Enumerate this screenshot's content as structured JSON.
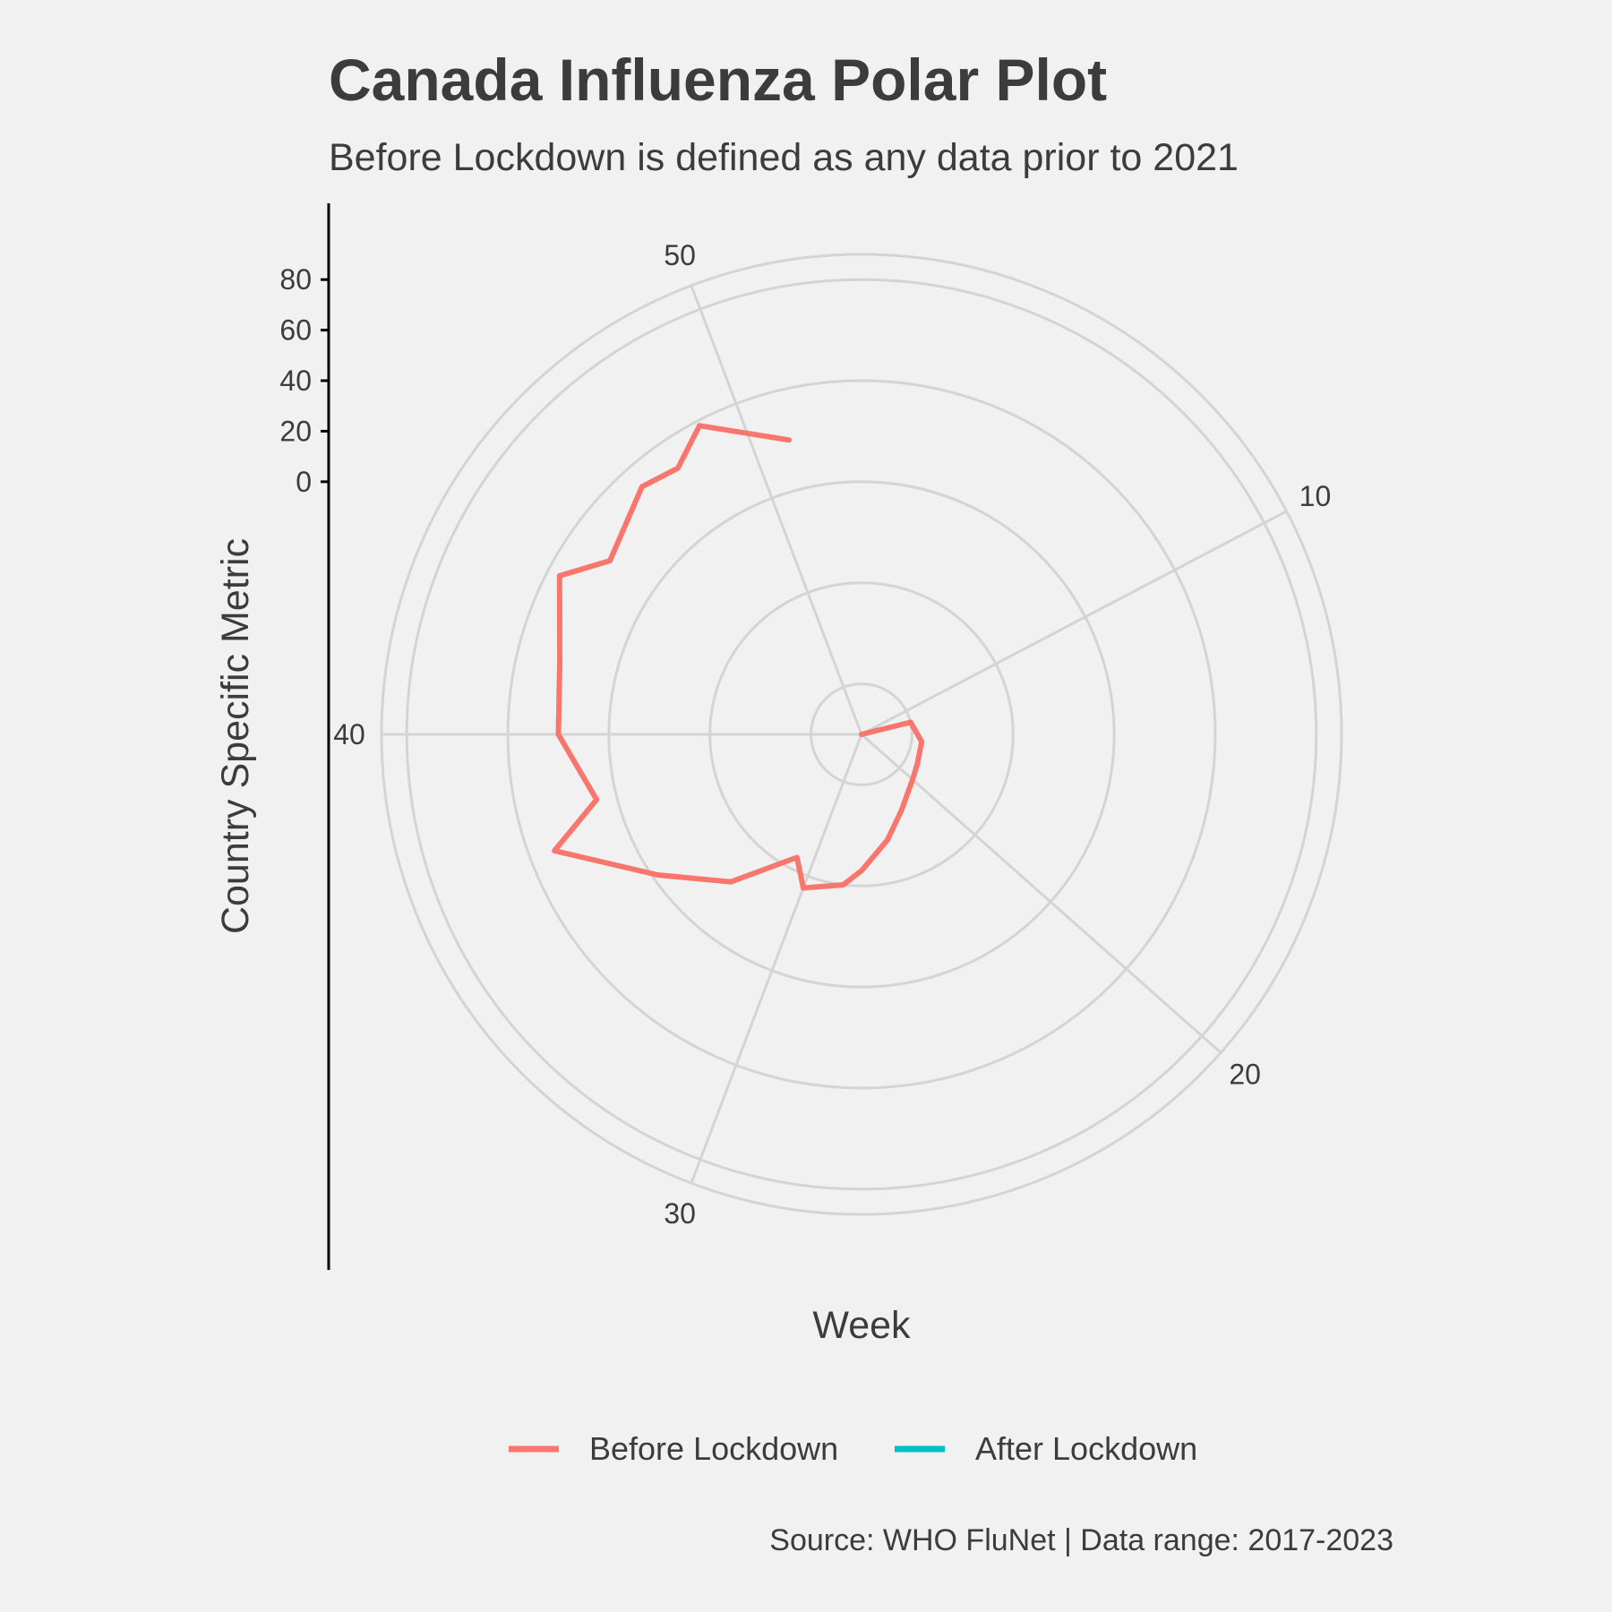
{
  "chart_data": {
    "type": "line",
    "coord": "polar",
    "title": "Canada Influenza Polar Plot",
    "subtitle": "Before Lockdown is defined as any data prior to 2021",
    "xlabel": "Week",
    "ylabel": "Country Specific Metric",
    "caption": "Source: WHO FluNet | Data range: 2017-2023",
    "theta_range": [
      1,
      53
    ],
    "r_range": [
      -100,
      90
    ],
    "theta_ticks": [
      "10",
      "20",
      "30",
      "40",
      "50"
    ],
    "r_ticks": [
      "0",
      "20",
      "40",
      "60",
      "80"
    ],
    "grid": true,
    "legend_position": "bottom",
    "colors": {
      "Before Lockdown": "#f8766d",
      "After Lockdown": "#00bfc4"
    },
    "series": [
      {
        "name": "Before Lockdown",
        "color": "#f8766d",
        "points": [
          {
            "x": 1,
            "y": -100
          },
          {
            "x": 12,
            "y": -80
          },
          {
            "x": 15,
            "y": -76
          },
          {
            "x": 18,
            "y": -75
          },
          {
            "x": 20,
            "y": -73
          },
          {
            "x": 23,
            "y": -66
          },
          {
            "x": 25,
            "y": -57
          },
          {
            "x": 27,
            "y": -46
          },
          {
            "x": 28,
            "y": -40
          },
          {
            "x": 30,
            "y": -35
          },
          {
            "x": 31,
            "y": -45
          },
          {
            "x": 33,
            "y": -22
          },
          {
            "x": 35,
            "y": -2
          },
          {
            "x": 37,
            "y": 30
          },
          {
            "x": 38,
            "y": 8
          },
          {
            "x": 40,
            "y": 20
          },
          {
            "x": 42,
            "y": 23
          },
          {
            "x": 44,
            "y": 35
          },
          {
            "x": 45,
            "y": 21
          },
          {
            "x": 47,
            "y": 31
          },
          {
            "x": 48,
            "y": 28
          },
          {
            "x": 49,
            "y": 38
          },
          {
            "x": 51,
            "y": 20
          }
        ]
      },
      {
        "name": "After Lockdown",
        "color": "#00bfc4",
        "points": []
      }
    ]
  }
}
